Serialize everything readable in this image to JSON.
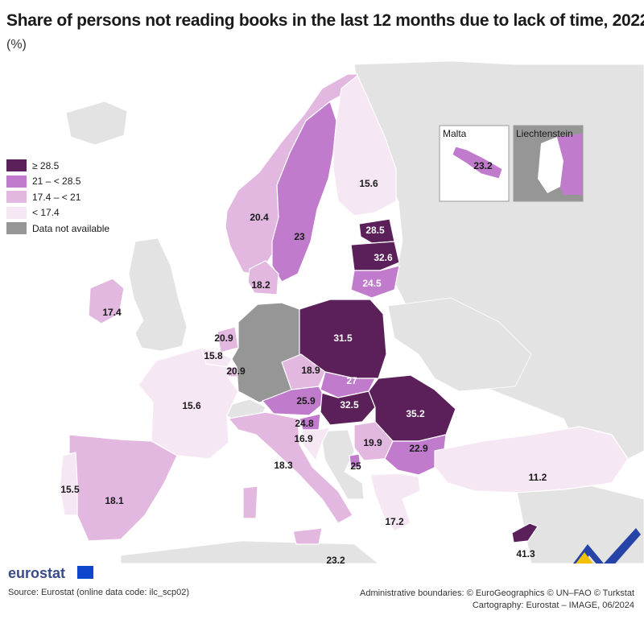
{
  "title": "Share of persons not reading books in the last 12 months due to lack of time, 2022",
  "subtitle": "(%)",
  "legend": [
    {
      "label": "≥ 28.5",
      "color": "#5b1f5a"
    },
    {
      "label": "21 – < 28.5",
      "color": "#c07bcc"
    },
    {
      "label": "17.4 – < 21",
      "color": "#e2b7e0"
    },
    {
      "label": "< 17.4",
      "color": "#f6e7f4"
    },
    {
      "label": "Data not available",
      "color": "#969696"
    }
  ],
  "insets": {
    "malta": {
      "name": "Malta",
      "value": "23.2"
    },
    "liechtenstein": {
      "name": "Liechtenstein"
    }
  },
  "values": {
    "finland": "15.6",
    "sweden": "23",
    "norway": "20.4",
    "estonia": "28.5",
    "latvia": "32.6",
    "lithuania": "24.5",
    "denmark": "18.2",
    "ireland": "17.4",
    "netherlands": "20.9",
    "belgium": "15.8",
    "luxembourg": "20.9",
    "poland": "31.5",
    "czechia": "18.9",
    "slovakia": "27",
    "austria": "25.9",
    "hungary": "32.5",
    "romania": "35.2",
    "slovenia": "24.8",
    "croatia": "16.9",
    "serbia": "19.9",
    "bulgaria": "22.9",
    "montenegro": "25",
    "france": "15.6",
    "spain": "18.1",
    "portugal": "15.5",
    "italy": "18.3",
    "turkey": "11.2",
    "greece": "17.2",
    "cyprus": "41.3",
    "malta_main": "23.2"
  },
  "branding": "eurostat",
  "source": "Source: Eurostat (online data code: ilc_scp02)",
  "credits_1": "Administrative boundaries: © EuroGeographics © UN–FAO © Turkstat",
  "credits_2": "Cartography: Eurostat – IMAGE, 06/2024"
}
